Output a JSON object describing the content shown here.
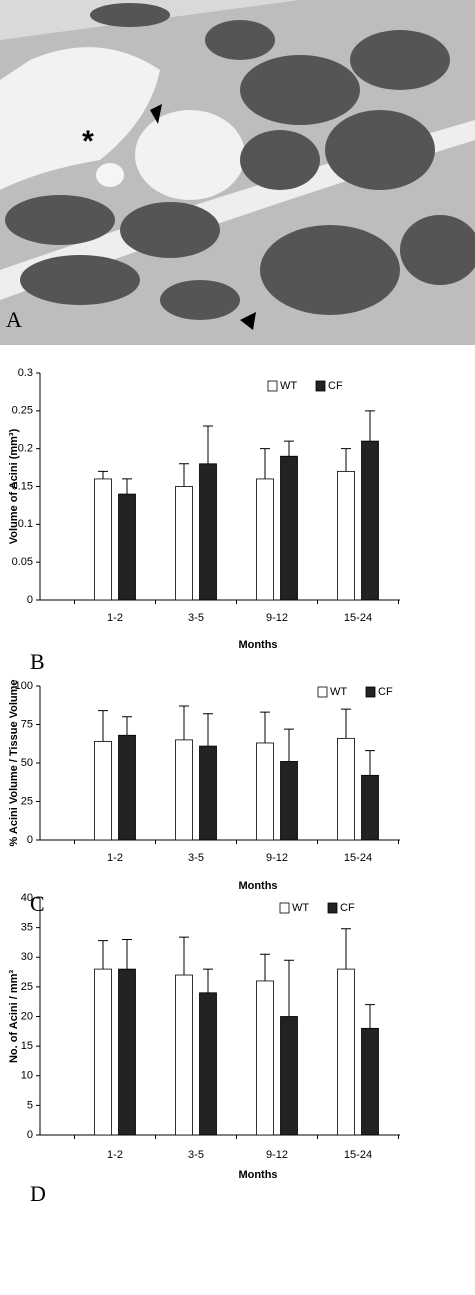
{
  "image_panel": {
    "label": "A",
    "annotation": "*"
  },
  "chart_data": [
    {
      "type": "bar",
      "panel_label": "B",
      "x_label": "Months",
      "y_label": "Volume of Acini (mm³)",
      "categories": [
        "1-2",
        "3-5",
        "9-12",
        "15-24"
      ],
      "series": [
        {
          "name": "WT",
          "color": "#ffffff",
          "values": [
            0.16,
            0.15,
            0.16,
            0.17
          ],
          "errors": [
            0.01,
            0.03,
            0.04,
            0.03
          ]
        },
        {
          "name": "CF",
          "color": "#222222",
          "values": [
            0.14,
            0.18,
            0.19,
            0.21
          ],
          "errors": [
            0.02,
            0.05,
            0.02,
            0.04
          ]
        }
      ],
      "ylim": [
        0,
        0.3
      ],
      "yticks": [
        0,
        0.05,
        0.1,
        0.15,
        0.2,
        0.25,
        0.3
      ],
      "legend": "top-right"
    },
    {
      "type": "bar",
      "panel_label": "C",
      "x_label": "Months",
      "y_label": "% Acini Volume / Tissue Volume",
      "categories": [
        "1-2",
        "3-5",
        "9-12",
        "15-24"
      ],
      "series": [
        {
          "name": "WT",
          "color": "#ffffff",
          "values": [
            64,
            65,
            63,
            66
          ],
          "errors": [
            20,
            22,
            20,
            19
          ]
        },
        {
          "name": "CF",
          "color": "#222222",
          "values": [
            68,
            61,
            51,
            42
          ],
          "errors": [
            12,
            21,
            21,
            16
          ]
        }
      ],
      "ylim": [
        0,
        100
      ],
      "yticks": [
        0,
        25,
        50,
        75,
        100
      ],
      "legend": "top-right"
    },
    {
      "type": "bar",
      "panel_label": "D",
      "x_label": "Months",
      "y_label": "No. of Acini / mm³",
      "categories": [
        "1-2",
        "3-5",
        "9-12",
        "15-24"
      ],
      "series": [
        {
          "name": "WT",
          "color": "#ffffff",
          "values": [
            28,
            27,
            26,
            28
          ],
          "errors": [
            4.8,
            6.4,
            4.5,
            6.8
          ]
        },
        {
          "name": "CF",
          "color": "#222222",
          "values": [
            28,
            24,
            20,
            18
          ],
          "errors": [
            5,
            4,
            9.5,
            4
          ]
        }
      ],
      "ylim": [
        0,
        40
      ],
      "yticks": [
        0,
        5,
        10,
        15,
        20,
        25,
        30,
        35,
        40
      ],
      "legend": "top-right"
    }
  ]
}
